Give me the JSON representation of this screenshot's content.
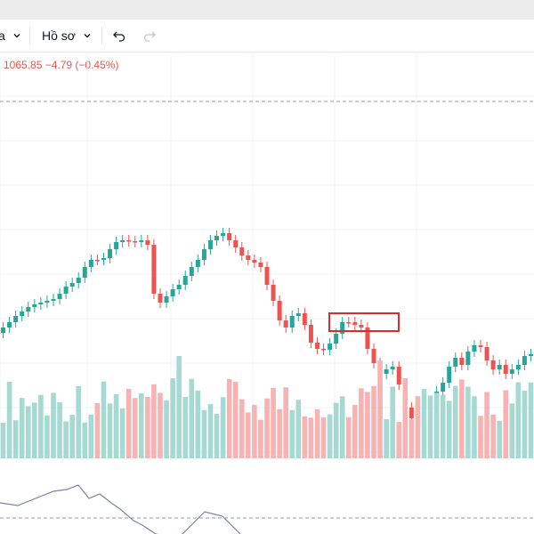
{
  "toolbar": {
    "left_partial_label": "a",
    "profile_label": "Hồ sơ",
    "undo_icon": "undo-icon",
    "redo_icon": "redo-icon"
  },
  "legend": {
    "ohlc_text": "1065.85 −4.79 (−0.45%)"
  },
  "colors": {
    "up": "#26a69a",
    "down": "#ef5350",
    "up_volume": "#a5d9d1",
    "down_volume": "#f7b2b3",
    "highlight_box": "#d32f2f",
    "indicator_line": "#7b82a8"
  },
  "chart_data": {
    "type": "candlestick",
    "candles": [
      [
        0,
        0,
        0,
        0
      ],
      [
        0,
        0,
        0,
        0
      ]
    ],
    "volume_note": "volume histogram bars under price"
  }
}
